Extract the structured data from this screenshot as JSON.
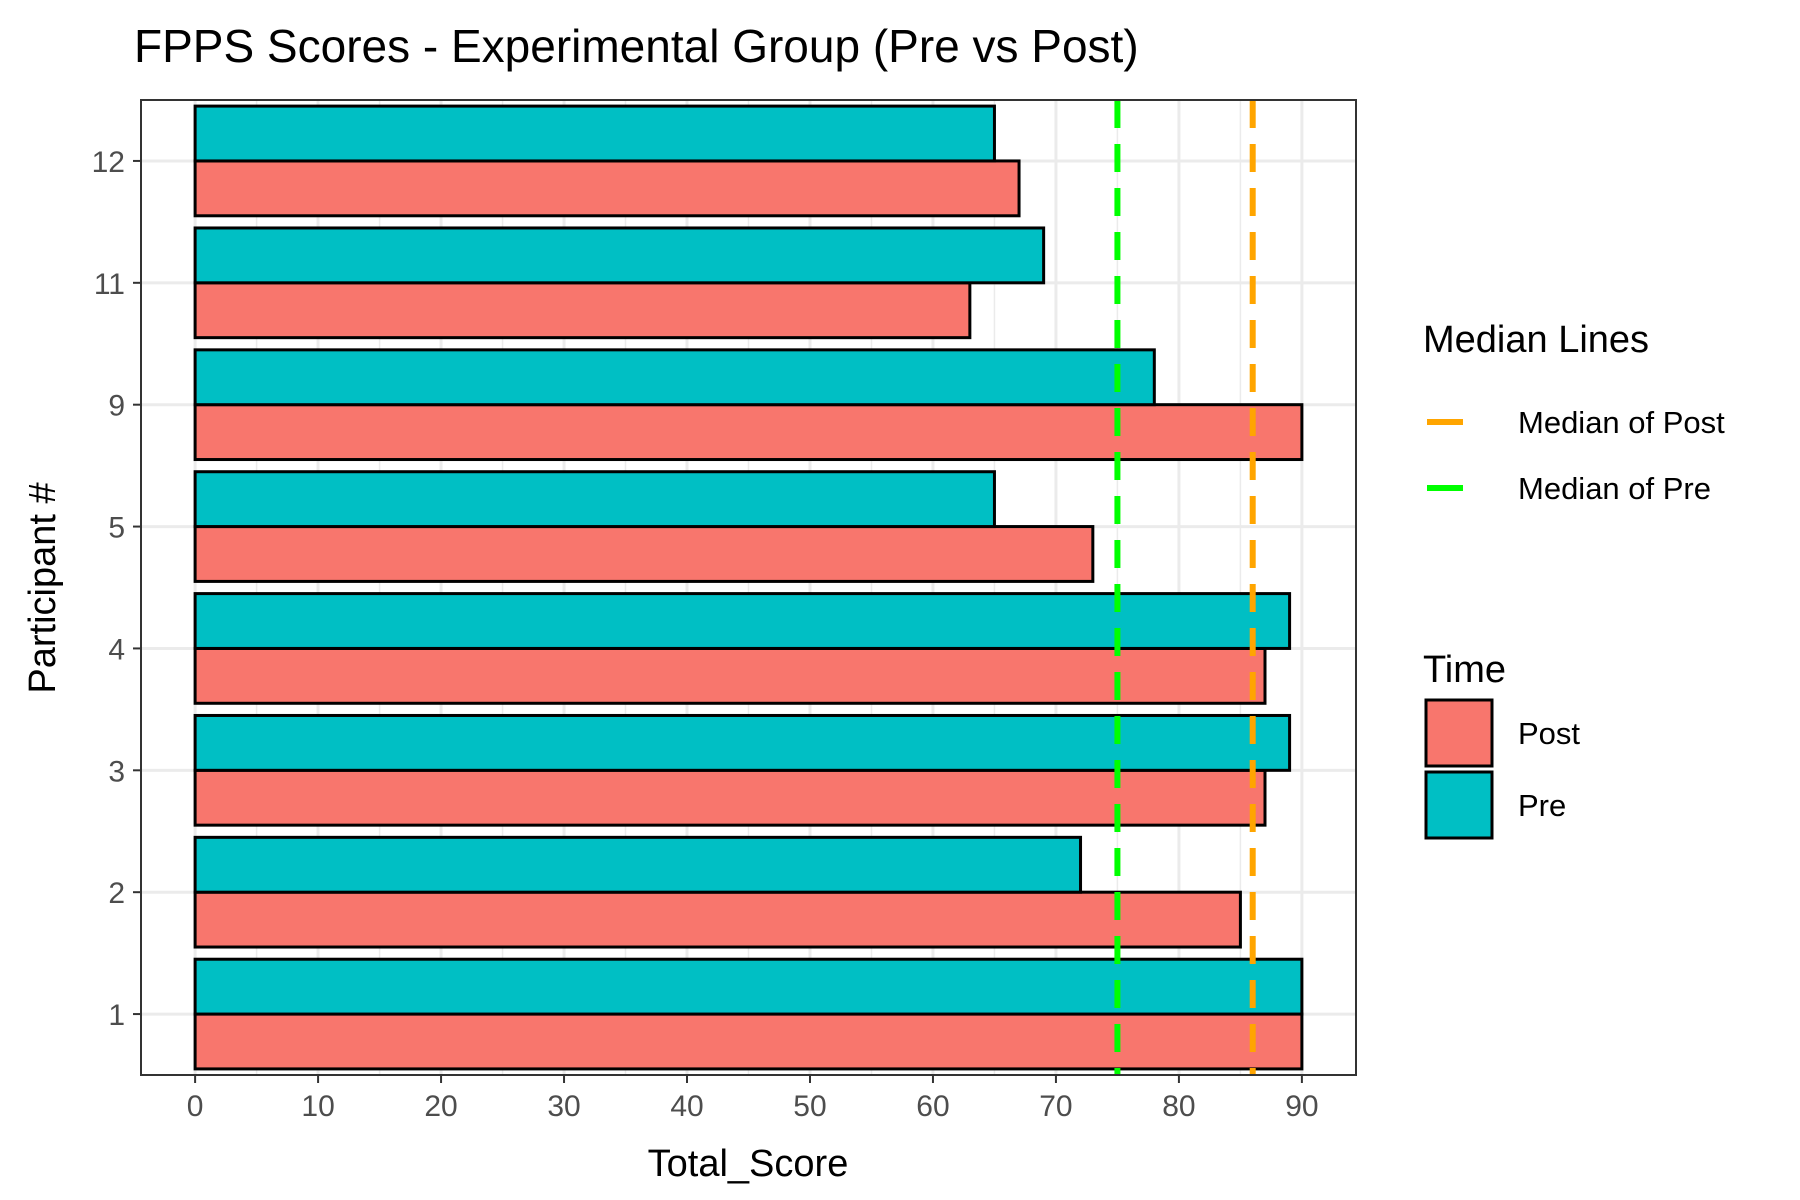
{
  "chart_data": {
    "type": "bar",
    "orientation": "horizontal",
    "title": "FPPS  Scores - Experimental Group (Pre vs Post)",
    "xlabel": "Total_Score",
    "ylabel": "Participant #",
    "xlim": [
      -4.4,
      94.4
    ],
    "x_ticks": [
      0,
      10,
      20,
      30,
      40,
      50,
      60,
      70,
      80,
      90
    ],
    "x_tick_labels": [
      "0",
      "10",
      "20",
      "30",
      "40",
      "50",
      "60",
      "70",
      "80",
      "90"
    ],
    "categories": [
      "1",
      "2",
      "3",
      "4",
      "5",
      "9",
      "11",
      "12"
    ],
    "series": [
      {
        "name": "Post",
        "color": "#F8766D",
        "values": [
          90,
          85,
          87,
          87,
          73,
          90,
          63,
          67
        ]
      },
      {
        "name": "Pre",
        "color": "#00BFC4",
        "values": [
          90,
          72,
          89,
          89,
          65,
          78,
          69,
          65
        ]
      }
    ],
    "reference_lines": [
      {
        "name": "Median of Post",
        "value": 86,
        "color": "#FFA500",
        "style": "dashed"
      },
      {
        "name": "Median of Pre",
        "value": 75,
        "color": "#00FF00",
        "style": "dashed"
      }
    ],
    "legends": [
      {
        "title": "Median Lines",
        "entries": [
          {
            "label": "Median of Post",
            "color": "#FFA500",
            "kind": "line"
          },
          {
            "label": "Median of Pre",
            "color": "#00FF00",
            "kind": "line"
          }
        ]
      },
      {
        "title": "Time",
        "entries": [
          {
            "label": "Post",
            "color": "#F8766D",
            "kind": "fill"
          },
          {
            "label": "Pre",
            "color": "#00BFC4",
            "kind": "fill"
          }
        ]
      }
    ],
    "legend_position": "right",
    "grid": true
  }
}
